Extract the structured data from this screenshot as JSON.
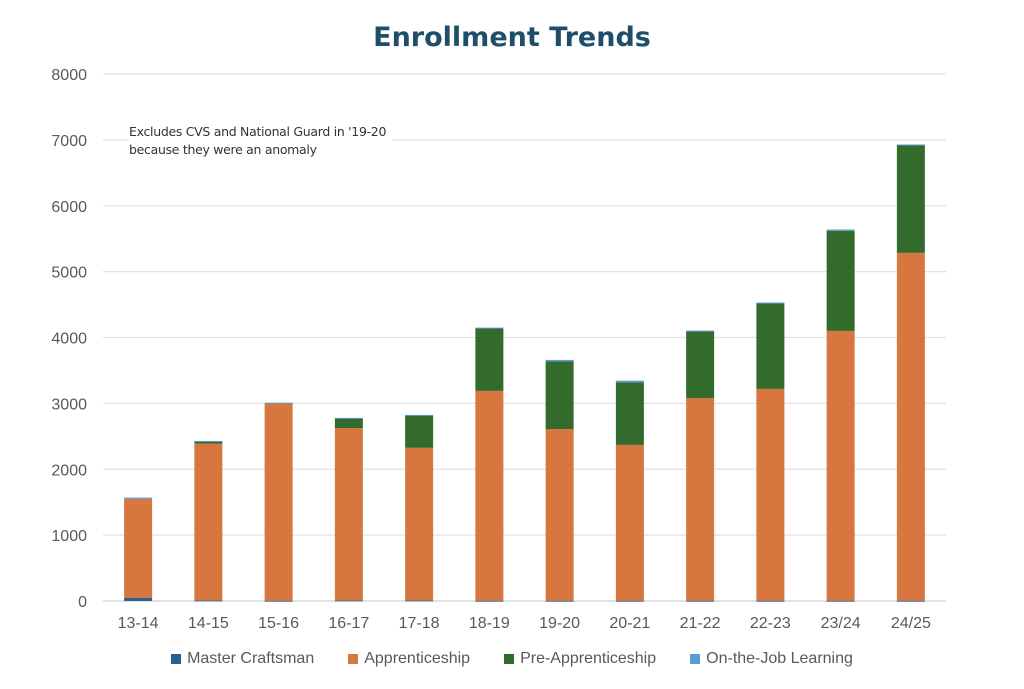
{
  "chart_data": {
    "type": "bar",
    "stacked": true,
    "title": "Enrollment Trends",
    "annotation": "Excludes CVS and National Guard in '19-20 because they were an anomaly",
    "annotation_lines": [
      "Excludes CVS and National Guard in '19-20",
      "because they were an anomaly"
    ],
    "xlabel": "",
    "ylabel": "",
    "ylim": [
      0,
      8000
    ],
    "yticks": [
      0,
      1000,
      2000,
      3000,
      4000,
      5000,
      6000,
      7000,
      8000
    ],
    "grid": true,
    "legend_position": "bottom",
    "categories": [
      "13-14",
      "14-15",
      "15-16",
      "16-17",
      "17-18",
      "18-19",
      "19-20",
      "20-21",
      "21-22",
      "22-23",
      "23/24",
      "24/25"
    ],
    "series": [
      {
        "name": "Master Craftsman",
        "color": "#2e5f8a",
        "values": [
          50,
          10,
          5,
          10,
          10,
          5,
          5,
          5,
          5,
          5,
          5,
          5
        ]
      },
      {
        "name": "Apprenticeship",
        "color": "#d87640",
        "values": [
          1500,
          2380,
          2995,
          2615,
          2315,
          3185,
          2605,
          2365,
          3075,
          3215,
          4095,
          5280
        ]
      },
      {
        "name": "Pre-Apprenticeship",
        "color": "#336b2c",
        "values": [
          0,
          30,
          0,
          150,
          495,
          950,
          1030,
          950,
          1015,
          1300,
          1520,
          1635
        ]
      },
      {
        "name": "On-the-Job Learning",
        "color": "#5b9bd5",
        "values": [
          20,
          10,
          10,
          5,
          5,
          10,
          20,
          25,
          10,
          10,
          20,
          10
        ]
      }
    ]
  }
}
